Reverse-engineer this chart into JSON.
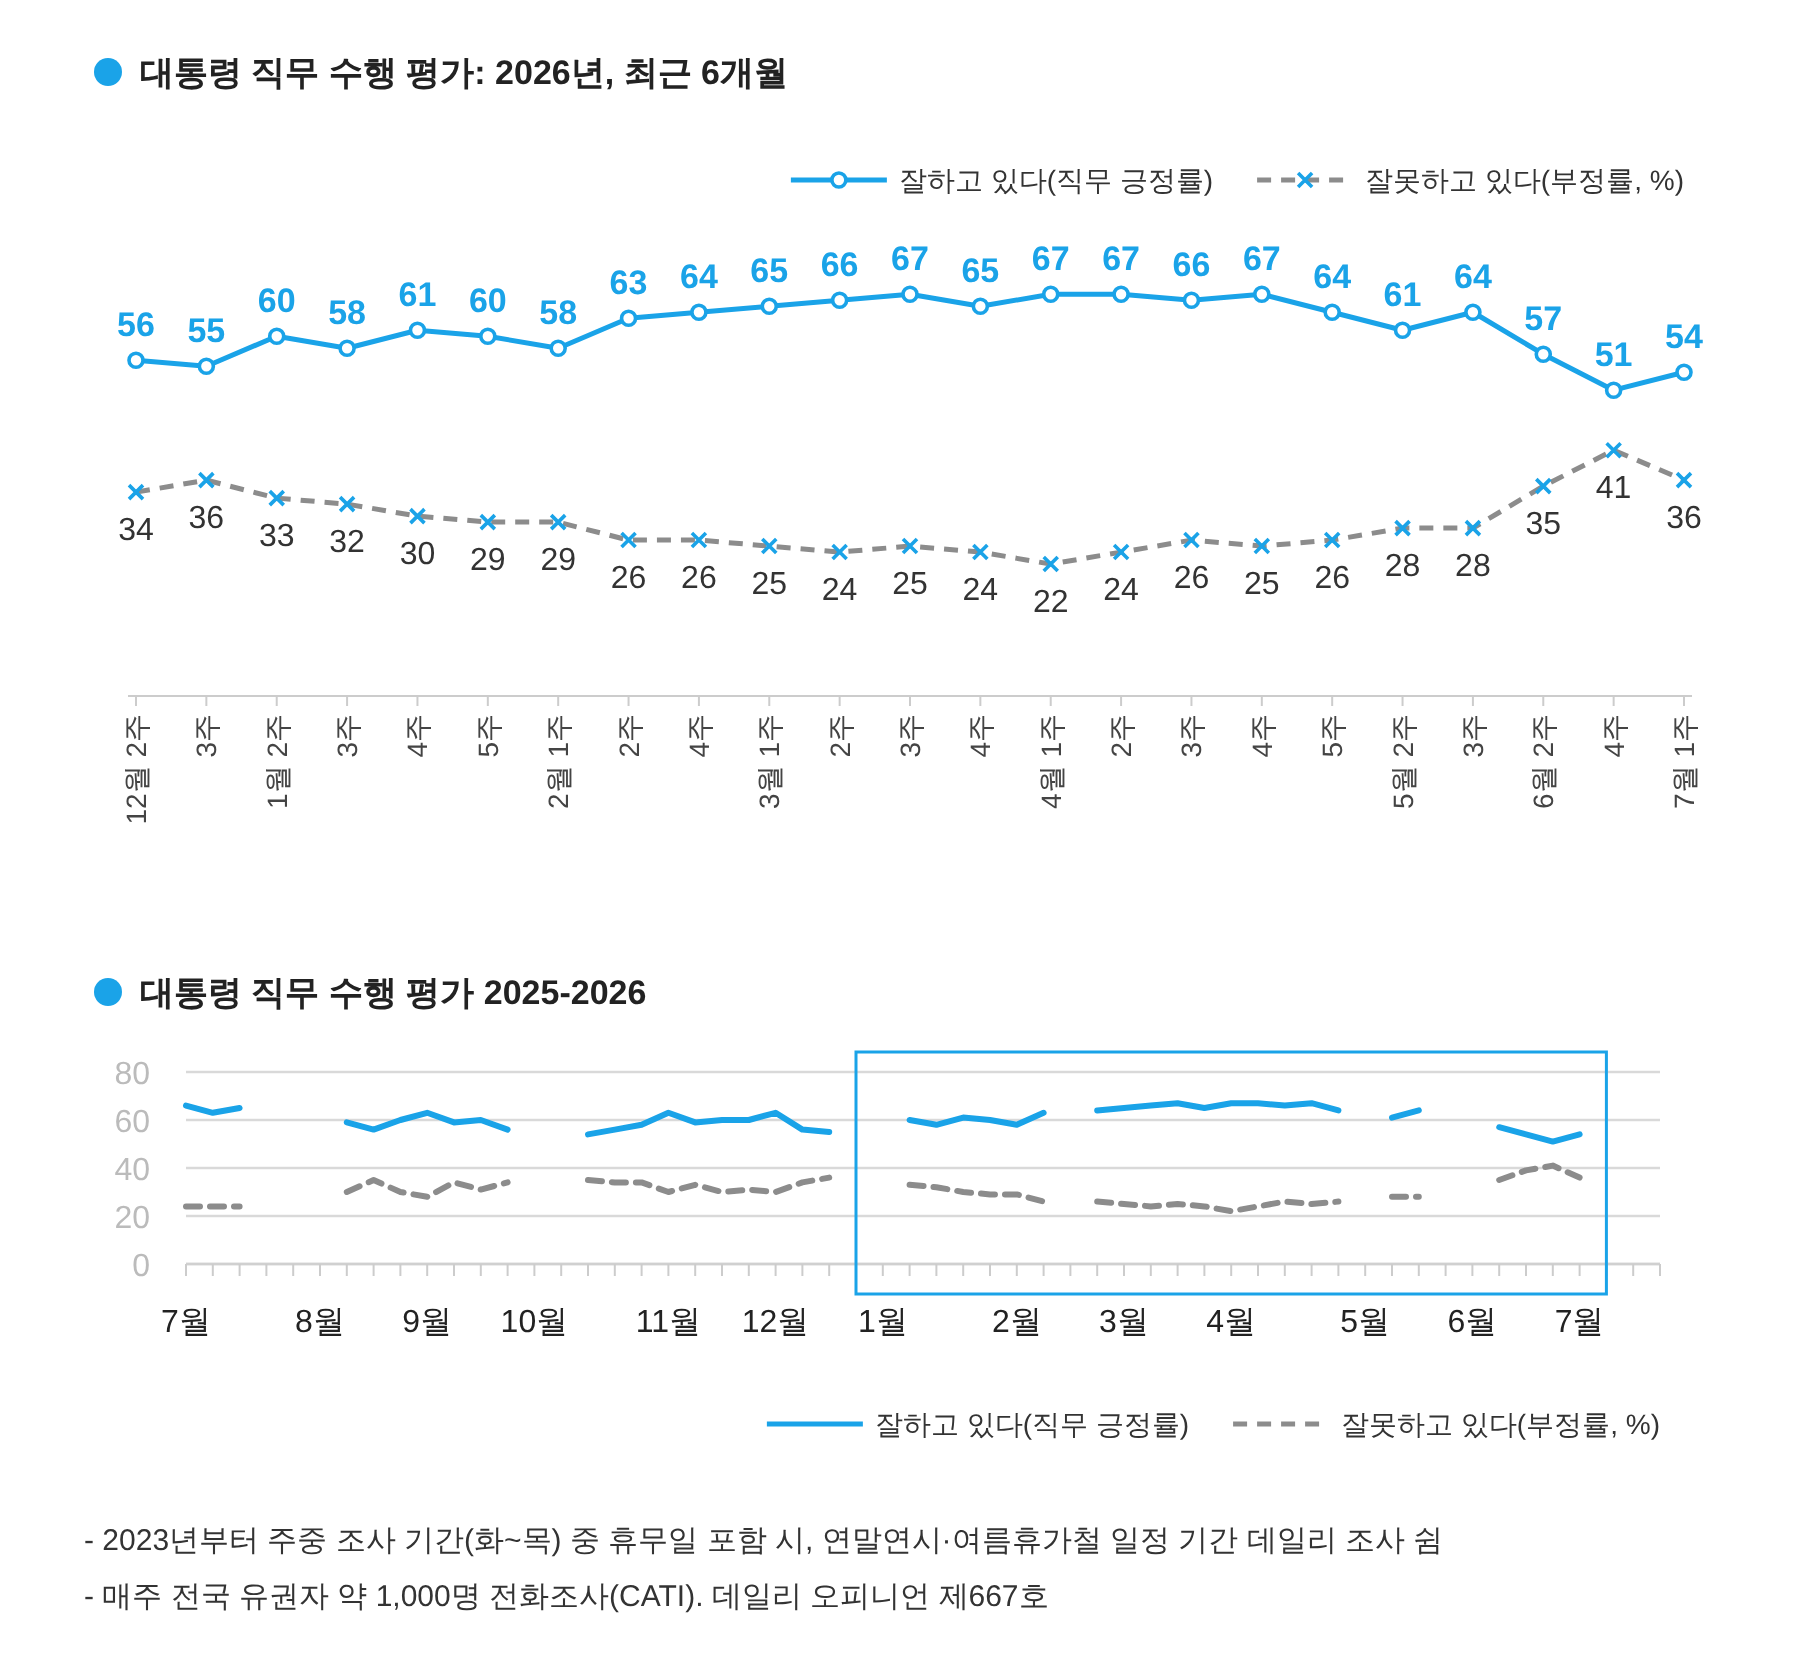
{
  "chart_data": [
    {
      "type": "line",
      "title": "대통령 직무 수행 평가: 2026년, 최근 6개월",
      "categories": [
        "12월 2주",
        "3주",
        "1월 2주",
        "3주",
        "4주",
        "5주",
        "2월 1주",
        "2주",
        "4주",
        "3월 1주",
        "2주",
        "3주",
        "4주",
        "4월 1주",
        "2주",
        "3주",
        "4주",
        "5주",
        "5월 2주",
        "3주",
        "6월 2주",
        "4주",
        "7월 1주"
      ],
      "series": [
        {
          "name": "잘하고 있다(직무 긍정률)",
          "color": "#1aa3e8",
          "marker": "circle",
          "line_style": "solid",
          "values": [
            56,
            55,
            60,
            58,
            61,
            60,
            58,
            63,
            64,
            65,
            66,
            67,
            65,
            67,
            67,
            66,
            67,
            64,
            61,
            64,
            57,
            51,
            54
          ]
        },
        {
          "name": "잘못하고 있다(부정률, %)",
          "color": "#8c8c8c",
          "marker": "cross",
          "line_style": "dashed",
          "values": [
            34,
            36,
            33,
            32,
            30,
            29,
            29,
            26,
            26,
            25,
            24,
            25,
            24,
            22,
            24,
            26,
            25,
            26,
            28,
            28,
            35,
            41,
            36
          ]
        }
      ],
      "data_labels": true,
      "legend": "top right"
    },
    {
      "type": "line",
      "title": "대통령 직무 수행 평가 2025-2026",
      "categories": [
        "7월",
        null,
        null,
        null,
        null,
        "8월",
        null,
        null,
        null,
        "9월",
        null,
        null,
        null,
        "10월",
        null,
        null,
        null,
        null,
        "11월",
        null,
        null,
        null,
        "12월",
        null,
        null,
        null,
        "1월",
        null,
        null,
        null,
        null,
        "2월",
        null,
        null,
        null,
        "3월",
        null,
        null,
        null,
        "4월",
        null,
        null,
        null,
        null,
        "5월",
        null,
        null,
        null,
        "6월",
        null,
        null,
        null,
        "7월",
        null,
        null,
        null
      ],
      "series": [
        {
          "name": "잘하고 있다(직무 긍정률)",
          "color": "#1aa3e8",
          "line_style": "solid",
          "values": [
            66,
            63,
            65,
            null,
            null,
            null,
            59,
            56,
            60,
            63,
            59,
            60,
            56,
            null,
            null,
            54,
            56,
            58,
            63,
            59,
            60,
            60,
            63,
            56,
            55,
            null,
            null,
            60,
            58,
            61,
            60,
            58,
            63,
            null,
            64,
            65,
            66,
            67,
            65,
            67,
            67,
            66,
            67,
            64,
            null,
            61,
            64,
            null,
            null,
            57,
            54,
            51,
            54,
            null,
            null,
            null
          ]
        },
        {
          "name": "잘못하고 있다(부정률, %)",
          "color": "#8c8c8c",
          "line_style": "dashed",
          "values": [
            24,
            24,
            24,
            null,
            null,
            null,
            30,
            35,
            30,
            28,
            34,
            31,
            34,
            null,
            null,
            35,
            34,
            34,
            30,
            33,
            30,
            31,
            30,
            34,
            36,
            null,
            null,
            33,
            32,
            30,
            29,
            29,
            26,
            null,
            26,
            25,
            24,
            25,
            24,
            22,
            24,
            26,
            25,
            26,
            null,
            28,
            28,
            null,
            null,
            35,
            39,
            41,
            36,
            null,
            null,
            null
          ]
        }
      ],
      "ylim": [
        0,
        80
      ],
      "yticks": [
        0,
        20,
        40,
        60,
        80
      ],
      "grid": "y",
      "legend": "bottom right",
      "annotations": [
        "- 2023년부터 주중 조사 기간(화~목) 중 휴무일 포함 시, 연말연시·여름휴가철 일정 기간 데일리 조사 쉼",
        "- 매주 전국 유권자 약 1,000명 전화조사(CATI). 데일리 오피니언 제667호"
      ]
    }
  ]
}
